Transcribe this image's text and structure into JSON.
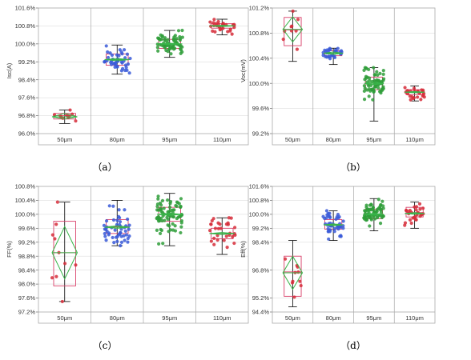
{
  "chart_data": [
    {
      "type": "box-scatter",
      "caption": "（a）",
      "ylabel": "Isc(A)",
      "ylim": [
        96.0,
        101.6
      ],
      "yticks": [
        "96.0%",
        "96.8%",
        "97.6%",
        "98.4%",
        "99.2%",
        "100.0%",
        "100.8%",
        "101.6%"
      ],
      "yticks_values": [
        96.0,
        96.8,
        97.6,
        98.4,
        99.2,
        100.0,
        100.8,
        101.6
      ],
      "categories": [
        "50μm",
        "80μm",
        "95μm",
        "110μm"
      ],
      "groups": [
        {
          "mean": 96.75,
          "q1": 96.65,
          "median": 96.8,
          "q3": 96.9,
          "whisker_low": 96.45,
          "whisker_high": 97.05,
          "ci_low": 96.65,
          "ci_high": 96.9,
          "spread": 0.2,
          "n": 10,
          "color": "#d62d3a",
          "points_center": 96.78
        },
        {
          "mean": 99.3,
          "q1": 99.05,
          "median": 99.3,
          "q3": 99.55,
          "whisker_low": 98.65,
          "whisker_high": 99.95,
          "ci_low": 99.25,
          "ci_high": 99.35,
          "spread": 0.3,
          "n": 45,
          "color": "#3a5bd8",
          "points_center": 99.3
        },
        {
          "mean": 100.0,
          "q1": 99.8,
          "median": 100.0,
          "q3": 100.2,
          "whisker_low": 99.4,
          "whisker_high": 100.6,
          "ci_low": 99.97,
          "ci_high": 100.03,
          "spread": 0.25,
          "n": 70,
          "color": "#2f9e3a",
          "points_center": 100.0
        },
        {
          "mean": 100.8,
          "q1": 100.7,
          "median": 100.8,
          "q3": 100.9,
          "whisker_low": 100.4,
          "whisker_high": 101.1,
          "ci_low": 100.77,
          "ci_high": 100.83,
          "spread": 0.15,
          "n": 28,
          "color": "#d62d3a",
          "points_center": 100.8
        }
      ]
    },
    {
      "type": "box-scatter",
      "caption": "（b）",
      "ylabel": "Voc(mV)",
      "ylim": [
        99.2,
        101.2
      ],
      "yticks": [
        "99.2%",
        "99.6%",
        "100.0%",
        "100.4%",
        "100.8%",
        "101.2%"
      ],
      "yticks_values": [
        99.2,
        99.6,
        100.0,
        100.4,
        100.8,
        101.2
      ],
      "categories": [
        "50μm",
        "80μm",
        "95μm",
        "110μm"
      ],
      "groups": [
        {
          "mean": 100.86,
          "q1": 100.6,
          "median": 100.85,
          "q3": 101.05,
          "whisker_low": 100.35,
          "whisker_high": 101.15,
          "ci_low": 100.66,
          "ci_high": 101.06,
          "spread": 0.22,
          "n": 9,
          "color": "#d62d3a",
          "points_center": 100.85
        },
        {
          "mean": 100.48,
          "q1": 100.44,
          "median": 100.48,
          "q3": 100.52,
          "whisker_low": 100.3,
          "whisker_high": 100.56,
          "ci_low": 100.46,
          "ci_high": 100.5,
          "spread": 0.05,
          "n": 30,
          "color": "#3a5bd8",
          "points_center": 100.48
        },
        {
          "mean": 100.0,
          "q1": 99.9,
          "median": 100.0,
          "q3": 100.1,
          "whisker_low": 99.4,
          "whisker_high": 100.25,
          "ci_low": 99.98,
          "ci_high": 100.02,
          "spread": 0.12,
          "n": 70,
          "color": "#2f9e3a",
          "points_center": 100.0
        },
        {
          "mean": 99.86,
          "q1": 99.82,
          "median": 99.86,
          "q3": 99.9,
          "whisker_low": 99.72,
          "whisker_high": 99.96,
          "ci_low": 99.85,
          "ci_high": 99.87,
          "spread": 0.05,
          "n": 26,
          "color": "#d62d3a",
          "points_center": 99.86
        }
      ]
    },
    {
      "type": "box-scatter",
      "caption": "（c）",
      "ylabel": "FF(%)",
      "ylim": [
        97.2,
        100.8
      ],
      "yticks": [
        "97.2%",
        "97.6%",
        "98.0%",
        "98.4%",
        "98.8%",
        "99.2%",
        "99.6%",
        "100.0%",
        "100.4%",
        "100.8%"
      ],
      "yticks_values": [
        97.2,
        97.6,
        98.0,
        98.4,
        98.8,
        99.2,
        99.6,
        100.0,
        100.4,
        100.8
      ],
      "categories": [
        "50μm",
        "80μm",
        "95μm",
        "110μm"
      ],
      "groups": [
        {
          "mean": 98.9,
          "q1": 97.95,
          "median": 98.9,
          "q3": 99.8,
          "whisker_low": 97.5,
          "whisker_high": 100.35,
          "ci_low": 98.15,
          "ci_high": 99.65,
          "spread": 0.9,
          "n": 10,
          "color": "#d62d3a",
          "points_center": 98.9
        },
        {
          "mean": 99.63,
          "q1": 99.45,
          "median": 99.65,
          "q3": 99.85,
          "whisker_low": 99.1,
          "whisker_high": 100.4,
          "ci_low": 99.6,
          "ci_high": 99.67,
          "spread": 0.3,
          "n": 50,
          "color": "#3a5bd8",
          "points_center": 99.63
        },
        {
          "mean": 100.0,
          "q1": 99.8,
          "median": 100.0,
          "q3": 100.2,
          "whisker_low": 99.1,
          "whisker_high": 100.6,
          "ci_low": 99.97,
          "ci_high": 100.03,
          "spread": 0.25,
          "n": 80,
          "color": "#2f9e3a",
          "points_center": 100.0
        },
        {
          "mean": 99.45,
          "q1": 99.3,
          "median": 99.45,
          "q3": 99.6,
          "whisker_low": 98.85,
          "whisker_high": 99.9,
          "ci_low": 99.42,
          "ci_high": 99.48,
          "spread": 0.25,
          "n": 30,
          "color": "#d62d3a",
          "points_center": 99.45
        }
      ]
    },
    {
      "type": "box-scatter",
      "caption": "（d）",
      "ylabel": "Eff(%)",
      "ylim": [
        94.4,
        101.6
      ],
      "yticks": [
        "94.4%",
        "95.2%",
        "96.8%",
        "98.4%",
        "99.2%",
        "100.0%",
        "100.8%",
        "101.6%"
      ],
      "yticks_values": [
        94.4,
        95.2,
        96.8,
        98.4,
        99.2,
        100.0,
        100.8,
        101.6
      ],
      "categories": [
        "50μm",
        "80μm",
        "95μm",
        "110μm"
      ],
      "groups": [
        {
          "mean": 96.65,
          "q1": 95.3,
          "median": 96.7,
          "q3": 97.6,
          "whisker_low": 94.7,
          "whisker_high": 98.5,
          "ci_low": 95.7,
          "ci_high": 97.6,
          "spread": 1.0,
          "n": 10,
          "color": "#d62d3a",
          "points_center": 96.6
        },
        {
          "mean": 99.4,
          "q1": 99.15,
          "median": 99.4,
          "q3": 99.7,
          "whisker_low": 98.5,
          "whisker_high": 100.2,
          "ci_low": 99.35,
          "ci_high": 99.45,
          "spread": 0.4,
          "n": 45,
          "color": "#3a5bd8",
          "points_center": 99.4
        },
        {
          "mean": 100.0,
          "q1": 99.75,
          "median": 100.0,
          "q3": 100.3,
          "whisker_low": 99.05,
          "whisker_high": 100.9,
          "ci_low": 99.95,
          "ci_high": 100.05,
          "spread": 0.35,
          "n": 70,
          "color": "#2f9e3a",
          "points_center": 100.0
        },
        {
          "mean": 100.05,
          "q1": 99.85,
          "median": 100.1,
          "q3": 100.4,
          "whisker_low": 99.2,
          "whisker_high": 100.7,
          "ci_low": 100.0,
          "ci_high": 100.1,
          "spread": 0.3,
          "n": 28,
          "color": "#d62d3a",
          "points_center": 100.05
        }
      ]
    }
  ],
  "colors": {
    "box": "#d9406a",
    "whisker": "#000000",
    "diamond": "#39b54a",
    "frame": "#aaaaaa",
    "grid": "#dddddd"
  }
}
